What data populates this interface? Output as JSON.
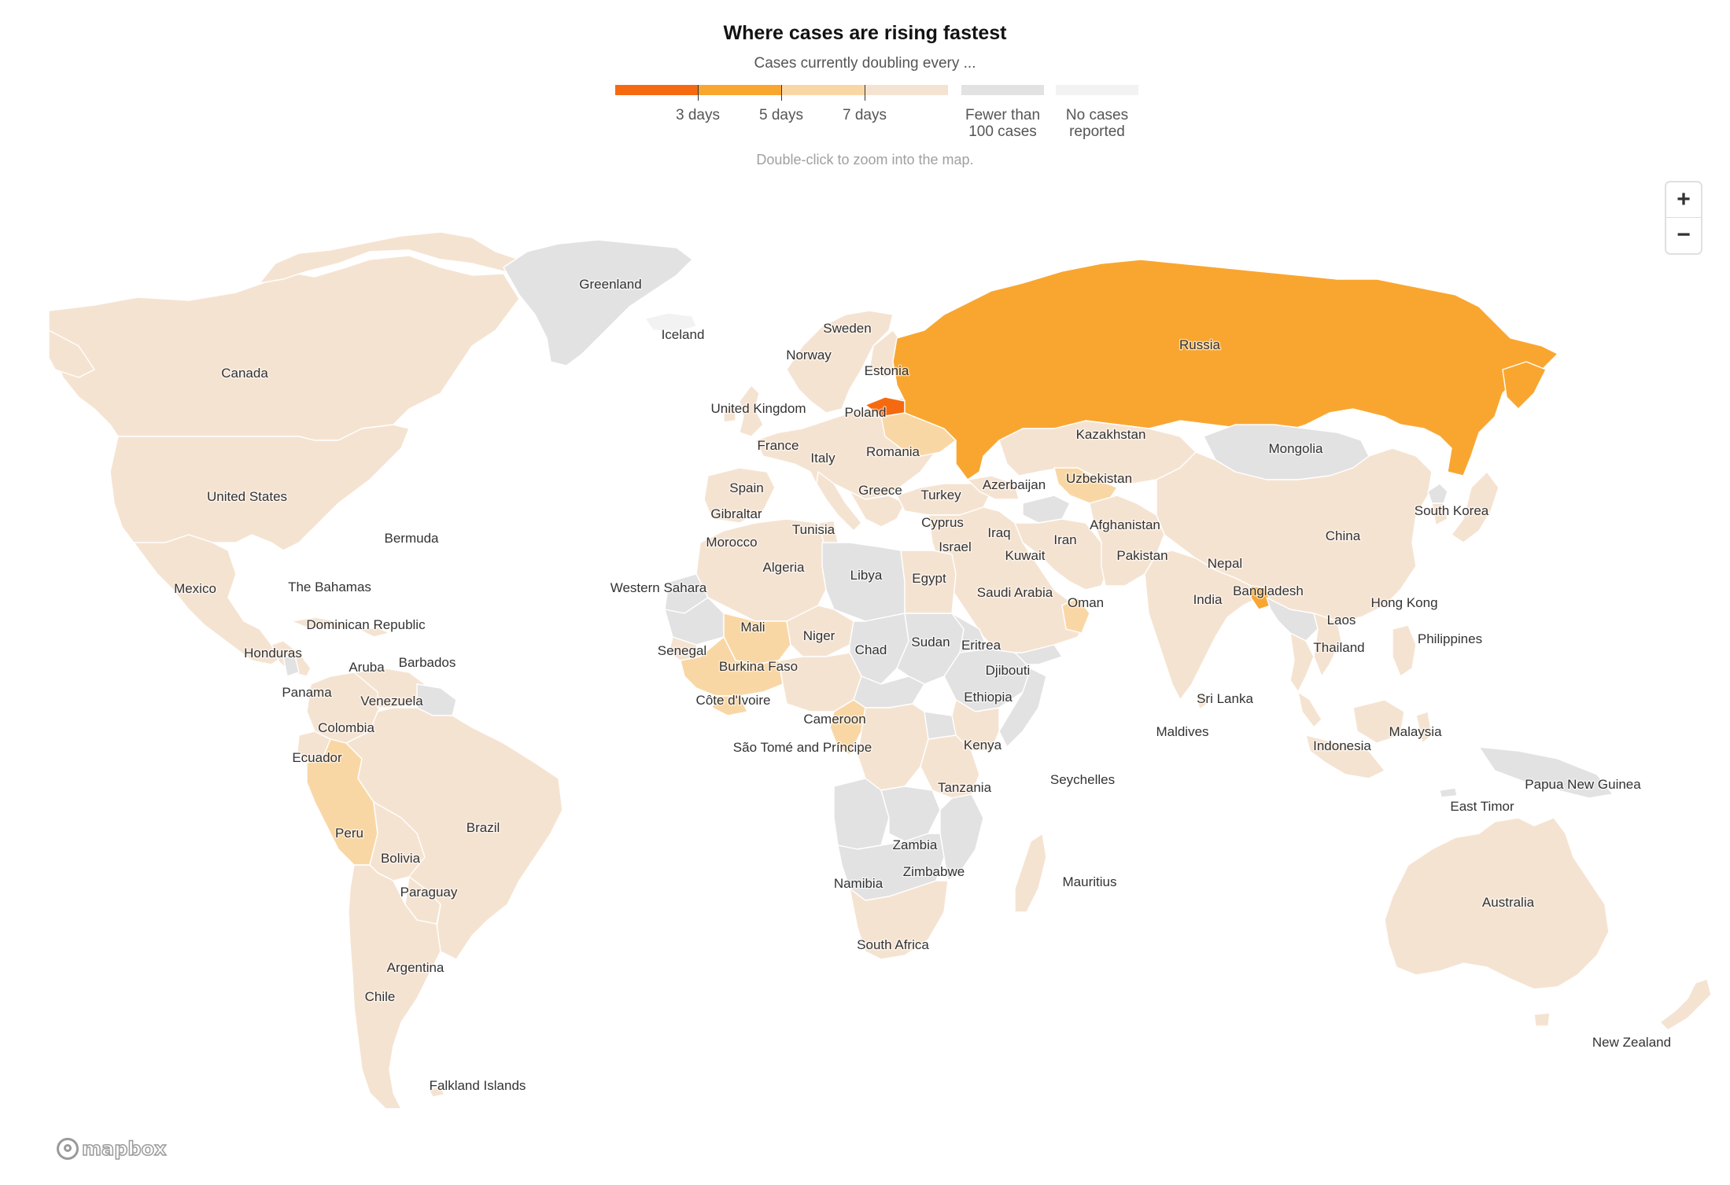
{
  "header": {
    "title": "Where cases are rising fastest",
    "subtitle": "Cases currently doubling every ...",
    "hint": "Double-click to zoom into the map."
  },
  "legend": {
    "bins": [
      {
        "color": "#f56a11"
      },
      {
        "color": "#f9a630"
      },
      {
        "color": "#f9d7a5"
      },
      {
        "color": "#f5e3d1"
      }
    ],
    "ticks": [
      "3 days",
      "5 days",
      "7 days"
    ],
    "fewer": {
      "color": "#e2e2e2",
      "line1": "Fewer than",
      "line2": "100 cases"
    },
    "none": {
      "color": "#f2f2f2",
      "line1": "No cases",
      "line2": "reported"
    }
  },
  "colors": {
    "rising": "#f56a11",
    "fast": "#f9a630",
    "medium": "#f9d7a5",
    "slow": "#f5e3d1",
    "fewer": "#e2e2e2",
    "none": "#f2f2f2"
  },
  "zoom": {
    "in_label": "+",
    "out_label": "−"
  },
  "attribution": {
    "logo_text": "mapbox"
  },
  "countries": [
    {
      "name": "Greenland",
      "category": "fewer"
    },
    {
      "name": "Iceland",
      "category": "none"
    },
    {
      "name": "Canada",
      "category": "slow"
    },
    {
      "name": "United States",
      "category": "slow"
    },
    {
      "name": "Bermuda",
      "category": "slow"
    },
    {
      "name": "Mexico",
      "category": "slow"
    },
    {
      "name": "The Bahamas",
      "category": "slow"
    },
    {
      "name": "Dominican Republic",
      "category": "slow"
    },
    {
      "name": "Honduras",
      "category": "slow"
    },
    {
      "name": "Aruba",
      "category": "slow"
    },
    {
      "name": "Barbados",
      "category": "slow"
    },
    {
      "name": "Panama",
      "category": "slow"
    },
    {
      "name": "Venezuela",
      "category": "slow"
    },
    {
      "name": "Colombia",
      "category": "slow"
    },
    {
      "name": "Ecuador",
      "category": "slow"
    },
    {
      "name": "Peru",
      "category": "medium"
    },
    {
      "name": "Brazil",
      "category": "slow"
    },
    {
      "name": "Bolivia",
      "category": "slow"
    },
    {
      "name": "Paraguay",
      "category": "slow"
    },
    {
      "name": "Argentina",
      "category": "slow"
    },
    {
      "name": "Chile",
      "category": "slow"
    },
    {
      "name": "Falkland Islands",
      "category": "slow"
    },
    {
      "name": "Sweden",
      "category": "slow"
    },
    {
      "name": "Norway",
      "category": "slow"
    },
    {
      "name": "Estonia",
      "category": "slow"
    },
    {
      "name": "United Kingdom",
      "category": "slow"
    },
    {
      "name": "Poland",
      "category": "slow"
    },
    {
      "name": "France",
      "category": "slow"
    },
    {
      "name": "Italy",
      "category": "slow"
    },
    {
      "name": "Romania",
      "category": "slow"
    },
    {
      "name": "Spain",
      "category": "slow"
    },
    {
      "name": "Greece",
      "category": "slow"
    },
    {
      "name": "Turkey",
      "category": "slow"
    },
    {
      "name": "Gibraltar",
      "category": "slow"
    },
    {
      "name": "Cyprus",
      "category": "slow"
    },
    {
      "name": "Tunisia",
      "category": "slow"
    },
    {
      "name": "Morocco",
      "category": "slow"
    },
    {
      "name": "Algeria",
      "category": "slow"
    },
    {
      "name": "Libya",
      "category": "fewer"
    },
    {
      "name": "Egypt",
      "category": "slow"
    },
    {
      "name": "Western Sahara",
      "category": "fewer"
    },
    {
      "name": "Mali",
      "category": "medium"
    },
    {
      "name": "Niger",
      "category": "slow"
    },
    {
      "name": "Senegal",
      "category": "slow"
    },
    {
      "name": "Burkina Faso",
      "category": "medium"
    },
    {
      "name": "Chad",
      "category": "fewer"
    },
    {
      "name": "Sudan",
      "category": "fewer"
    },
    {
      "name": "Eritrea",
      "category": "fewer"
    },
    {
      "name": "Djibouti",
      "category": "slow"
    },
    {
      "name": "Côte d'Ivoire",
      "category": "medium"
    },
    {
      "name": "Ethiopia",
      "category": "fewer"
    },
    {
      "name": "Cameroon",
      "category": "slow"
    },
    {
      "name": "São Tomé and Príncipe",
      "category": "slow"
    },
    {
      "name": "Kenya",
      "category": "slow"
    },
    {
      "name": "Tanzania",
      "category": "slow"
    },
    {
      "name": "Seychelles",
      "category": "slow"
    },
    {
      "name": "Zambia",
      "category": "fewer"
    },
    {
      "name": "Zimbabwe",
      "category": "fewer"
    },
    {
      "name": "Namibia",
      "category": "fewer"
    },
    {
      "name": "Mauritius",
      "category": "slow"
    },
    {
      "name": "South Africa",
      "category": "slow"
    },
    {
      "name": "Russia",
      "category": "fast"
    },
    {
      "name": "Kazakhstan",
      "category": "slow"
    },
    {
      "name": "Mongolia",
      "category": "fewer"
    },
    {
      "name": "Azerbaijan",
      "category": "slow"
    },
    {
      "name": "Uzbekistan",
      "category": "medium"
    },
    {
      "name": "South Korea",
      "category": "slow"
    },
    {
      "name": "Iraq",
      "category": "slow"
    },
    {
      "name": "Afghanistan",
      "category": "slow"
    },
    {
      "name": "Israel",
      "category": "slow"
    },
    {
      "name": "Iran",
      "category": "slow"
    },
    {
      "name": "Kuwait",
      "category": "slow"
    },
    {
      "name": "Pakistan",
      "category": "slow"
    },
    {
      "name": "China",
      "category": "slow"
    },
    {
      "name": "Nepal",
      "category": "fewer"
    },
    {
      "name": "Saudi Arabia",
      "category": "slow"
    },
    {
      "name": "India",
      "category": "slow"
    },
    {
      "name": "Bangladesh",
      "category": "fast"
    },
    {
      "name": "Oman",
      "category": "medium"
    },
    {
      "name": "Hong Kong",
      "category": "slow"
    },
    {
      "name": "Laos",
      "category": "fewer"
    },
    {
      "name": "Thailand",
      "category": "slow"
    },
    {
      "name": "Philippines",
      "category": "slow"
    },
    {
      "name": "Sri Lanka",
      "category": "slow"
    },
    {
      "name": "Maldives",
      "category": "slow"
    },
    {
      "name": "Malaysia",
      "category": "slow"
    },
    {
      "name": "Indonesia",
      "category": "slow"
    },
    {
      "name": "Papua New Guinea",
      "category": "fewer"
    },
    {
      "name": "East Timor",
      "category": "fewer"
    },
    {
      "name": "Australia",
      "category": "slow"
    },
    {
      "name": "New Zealand",
      "category": "slow"
    }
  ]
}
